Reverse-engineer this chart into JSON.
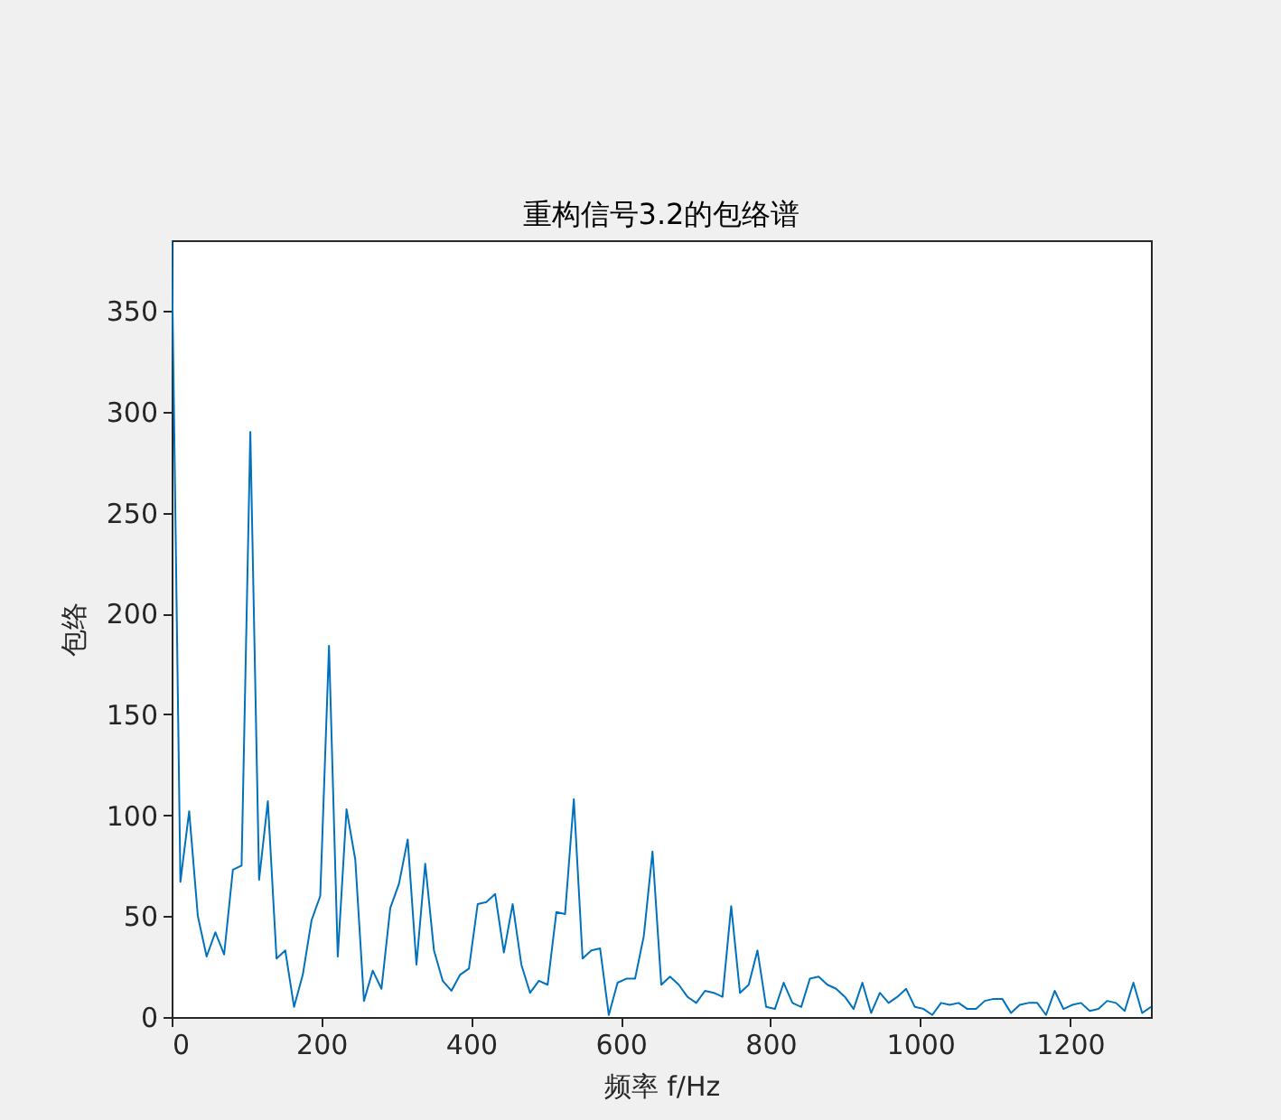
{
  "chart_data": {
    "type": "line",
    "title": "重构信号3.2的包络谱",
    "xlabel": "频率 f/Hz",
    "ylabel": "包络",
    "x": [
      0,
      11.7,
      23.4,
      35.0,
      46.7,
      58.4,
      70.1,
      81.8,
      93.4,
      105.1,
      116.8,
      128.5,
      140.1,
      151.8,
      163.5,
      175.2,
      186.9,
      198.5,
      210.2,
      221.9,
      233.6,
      245.3,
      256.9,
      268.6,
      280.3,
      292.0,
      303.6,
      315.3,
      327.0,
      338.7,
      350.4,
      362.0,
      373.7,
      385.4,
      397.1,
      408.8,
      420.4,
      432.1,
      443.8,
      455.5,
      467.1,
      478.8,
      490.5,
      502.2,
      513.9,
      525.5,
      537.2,
      548.9,
      560.6,
      572.3,
      583.9,
      595.6,
      607.3,
      619.0,
      630.6,
      642.3,
      654.0,
      665.7,
      677.4,
      689.0,
      700.7,
      712.4,
      724.1,
      735.8,
      747.4,
      759.1,
      770.8,
      782.5,
      794.1,
      805.8,
      817.5,
      829.2,
      840.9,
      852.5,
      864.2,
      875.9,
      887.6,
      899.3,
      910.9,
      922.6,
      934.3,
      946.0,
      957.6,
      969.3,
      981.0,
      992.7,
      1004.4,
      1016.0,
      1027.7,
      1039.4,
      1051.1,
      1062.8,
      1074.4,
      1086.1,
      1097.8,
      1109.5,
      1121.1,
      1132.8,
      1144.5,
      1156.2,
      1167.9,
      1179.5,
      1191.2,
      1202.9,
      1214.6,
      1226.3,
      1237.9,
      1249.6,
      1261.3,
      1273.0,
      1284.6,
      1296.3,
      1308.0
    ],
    "series": [
      {
        "color": "#0072bd",
        "values": [
          385,
          67,
          102,
          50,
          30,
          42,
          31,
          73,
          75,
          290,
          68,
          107,
          29,
          33,
          5,
          21,
          48,
          60,
          184,
          30,
          103,
          78,
          8,
          23,
          14,
          54,
          66,
          88,
          26,
          76,
          33,
          18,
          13,
          21,
          24,
          56,
          57,
          61,
          32,
          56,
          26,
          12,
          18,
          16,
          52,
          51,
          108,
          29,
          33,
          34,
          1,
          17,
          19,
          19,
          40,
          82,
          16,
          20,
          16,
          10,
          7,
          13,
          12,
          10,
          55,
          12,
          16,
          33,
          5,
          4,
          17,
          7,
          5,
          19,
          20,
          16,
          14,
          10,
          4,
          17,
          2,
          12,
          7,
          10,
          14,
          5,
          4,
          1,
          7,
          6,
          7,
          4,
          4,
          8,
          9,
          9,
          2,
          6,
          7,
          7,
          1,
          13,
          4,
          6,
          7,
          3,
          4,
          8,
          7,
          3,
          17,
          2,
          5
        ]
      }
    ],
    "xlim": [
      0,
      1308
    ],
    "ylim": [
      0,
      385
    ],
    "xticks": [
      0,
      200,
      400,
      600,
      800,
      1000,
      1200
    ],
    "yticks": [
      0,
      50,
      100,
      150,
      200,
      250,
      300,
      350
    ]
  }
}
